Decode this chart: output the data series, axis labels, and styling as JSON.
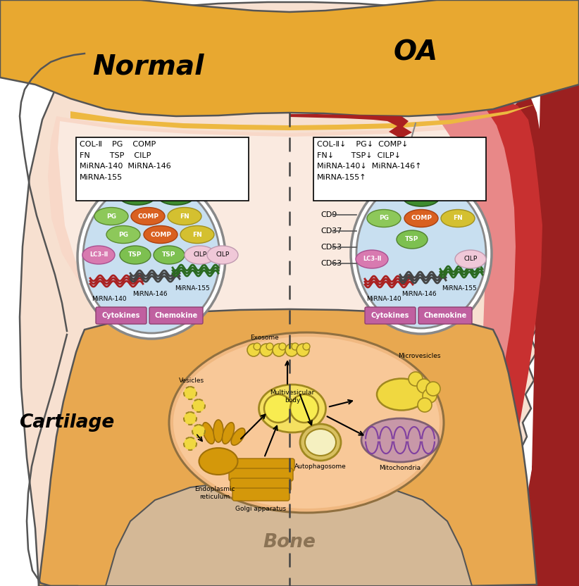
{
  "title_normal": "Normal",
  "title_oa": "OA",
  "title_cartilage": "Cartilage",
  "title_bone": "Bone",
  "normal_box_lines": [
    "COL-Ⅱ    PG    COMP",
    "FN        TSP    CILP",
    "MiRNA-140  MiRNA-146",
    "MiRNA-155"
  ],
  "oa_box_lines": [
    "COL-Ⅱ↓    PG↓  COMP↓",
    "FN↓       TSP↓  CILP↓",
    "MiRNA-140↓  MiRNA-146↑",
    "MiRNA-155↑"
  ],
  "outer_joint_color": "#F2C98A",
  "joint_inner_color": "#F5C8A8",
  "synovial_bg": "#F5D0BE",
  "joint_space_color": "#FADED8",
  "oa_dark_red": "#8B1A1A",
  "oa_med_red": "#C03030",
  "oa_light_red": "#E08080",
  "oa_pink": "#F0B0B0",
  "circle_bg": "#C8DFF0",
  "circle_outline": "#AAAAAA",
  "green_dark": "#3D8B2F",
  "green_light": "#7DC050",
  "orange_comp": "#D96020",
  "yellow_fn": "#D4C030",
  "pink_lc3": "#D87AB0",
  "pink_cilp": "#F0C8D8",
  "mauve_cyt": "#C060A0",
  "cell_outer": "#E8A060",
  "cell_inner": "#F5C090",
  "cell_fill": "#F0B080",
  "yellow_mvb": "#F0D840",
  "golgi_color": "#D4980A",
  "mito_fill": "#C898A8",
  "mito_inner": "#9860A0",
  "auto_outer": "#D0C060",
  "auto_inner": "#F5EFB0",
  "vesicle_color": "#E8B840"
}
